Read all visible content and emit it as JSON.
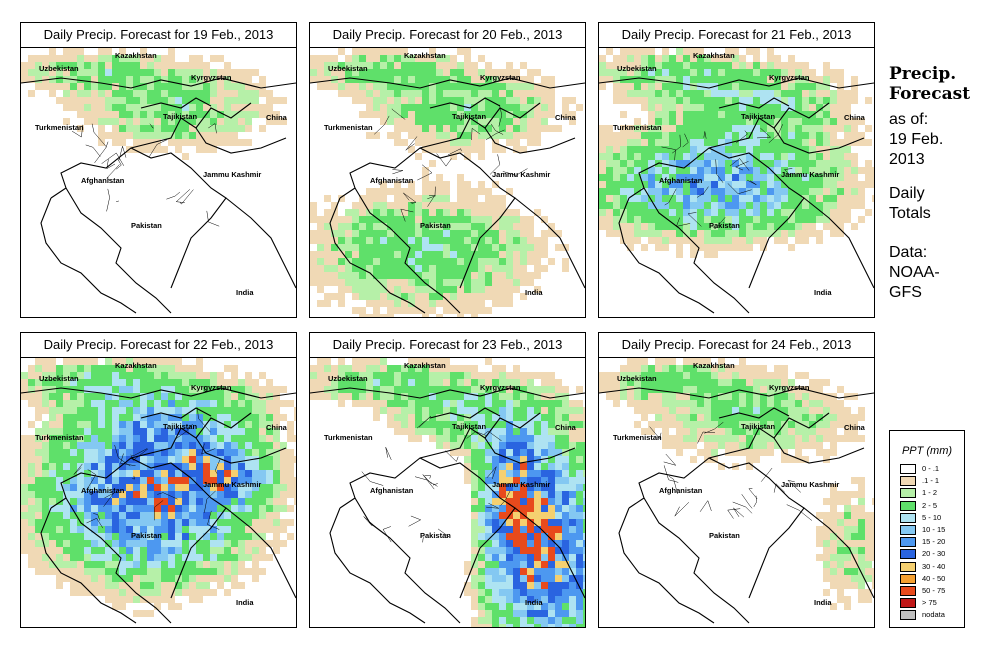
{
  "colors": {
    "c0": "#ffffff",
    "c1": "#f0d9b5",
    "c2": "#b6f0a8",
    "c3": "#5fe06a",
    "c4": "#aee3f2",
    "c5": "#84c8f2",
    "c6": "#4d98f0",
    "c7": "#2a64e0",
    "c8": "#f5d070",
    "c9": "#f5a030",
    "c10": "#e84a1c",
    "c11": "#c01818",
    "c12": "#c0c0c0"
  },
  "countries": [
    "Kazakhstan",
    "Uzbekistan",
    "Kyrgyzstan",
    "Tajikistan",
    "Turkmenistan",
    "China",
    "Afghanistan",
    "Jammu Kashmir",
    "Pakistan",
    "India"
  ],
  "panels": [
    {
      "title": "Daily Precip. Forecast for  19 Feb., 2013",
      "intensity": 1
    },
    {
      "title": "Daily Precip. Forecast for  20 Feb., 2013",
      "intensity": 1
    },
    {
      "title": "Daily Precip. Forecast for  21 Feb., 2013",
      "intensity": 2
    },
    {
      "title": "Daily Precip. Forecast for  22 Feb., 2013",
      "intensity": 3
    },
    {
      "title": "Daily Precip. Forecast for  23 Feb., 2013",
      "intensity": 3
    },
    {
      "title": "Daily Precip. Forecast for  24 Feb., 2013",
      "intensity": 1
    }
  ],
  "sidebar": {
    "title_line1": "Precip.",
    "title_line2": "Forecast",
    "asof_line1": "as of:",
    "asof_line2": "19 Feb.",
    "asof_line3": "2013",
    "daily_line1": "Daily",
    "daily_line2": "Totals",
    "data_line1": "Data:",
    "data_line2": "NOAA-",
    "data_line3": "GFS"
  },
  "legend": {
    "title": "PPT (mm)",
    "items": [
      {
        "label": "0 - .1",
        "color": "c0"
      },
      {
        "label": ".1 - 1",
        "color": "c1"
      },
      {
        "label": "1 - 2",
        "color": "c2"
      },
      {
        "label": "2 - 5",
        "color": "c3"
      },
      {
        "label": "5 - 10",
        "color": "c4"
      },
      {
        "label": "10 - 15",
        "color": "c5"
      },
      {
        "label": "15 - 20",
        "color": "c6"
      },
      {
        "label": "20 - 30",
        "color": "c7"
      },
      {
        "label": "30 - 40",
        "color": "c8"
      },
      {
        "label": "40 - 50",
        "color": "c9"
      },
      {
        "label": "50 - 75",
        "color": "c10"
      },
      {
        "label": "> 75",
        "color": "c11"
      },
      {
        "label": "nodata",
        "color": "c12"
      }
    ]
  }
}
